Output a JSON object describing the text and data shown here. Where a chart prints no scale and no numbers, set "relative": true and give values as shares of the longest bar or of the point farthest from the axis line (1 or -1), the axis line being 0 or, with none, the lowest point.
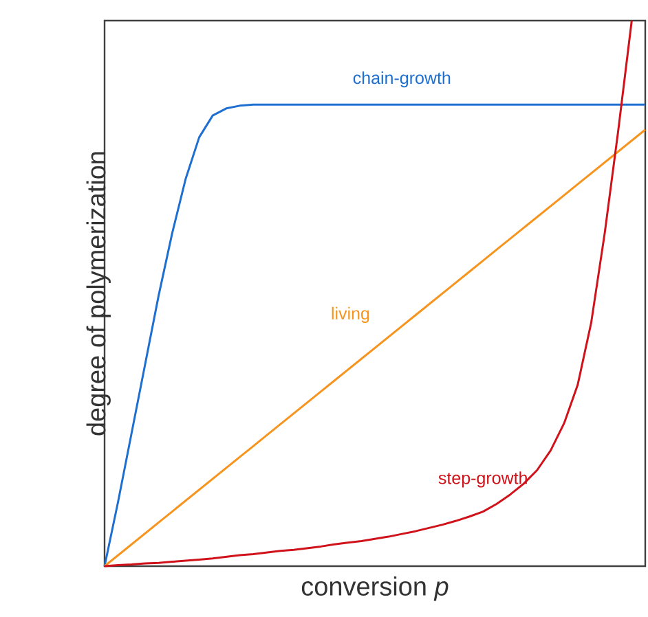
{
  "chart_data": {
    "type": "line",
    "relative": true,
    "xlabel": "conversion *p*",
    "ylabel": "degree of polymerization",
    "marker": "none",
    "line_style": "solid",
    "categories": [
      null,
      null,
      null,
      null,
      null,
      null,
      null,
      null,
      null,
      null,
      null,
      null,
      null,
      null,
      null,
      null,
      null,
      null,
      null,
      null,
      null,
      null,
      null,
      null,
      null,
      null,
      null,
      null,
      null,
      null,
      null,
      null,
      null,
      null,
      null,
      null,
      null,
      null,
      null,
      null,
      null
    ],
    "series": [
      {
        "name": "chain-growth",
        "color": "#1f6fd1",
        "values": [
          0,
          0.118,
          0.244,
          0.37,
          0.496,
          0.61,
          0.71,
          0.786,
          0.826,
          0.839,
          0.844,
          0.846,
          0.846,
          0.846,
          0.846,
          0.846,
          0.846,
          0.846,
          0.846,
          0.846,
          0.846,
          0.846,
          0.846,
          0.846,
          0.846,
          0.846,
          0.846,
          0.846,
          0.846,
          0.846,
          0.846,
          0.846,
          0.846,
          0.846,
          0.846,
          0.846,
          0.846,
          0.846,
          0.846,
          0.846,
          0.846
        ]
      },
      {
        "name": "living",
        "color": "#f7941d",
        "values": [
          0,
          0.02,
          0.04,
          0.06,
          0.08,
          0.1,
          0.12,
          0.14,
          0.16,
          0.18,
          0.2,
          0.22,
          0.24,
          0.26,
          0.28,
          0.3,
          0.32,
          0.34,
          0.36,
          0.38,
          0.4,
          0.42,
          0.44,
          0.46,
          0.48,
          0.5,
          0.52,
          0.54,
          0.56,
          0.58,
          0.6,
          0.62,
          0.64,
          0.66,
          0.68,
          0.7,
          0.72,
          0.74,
          0.76,
          0.78,
          0.8
        ]
      },
      {
        "name": "step-growth",
        "color": "#d0121b",
        "values": [
          0,
          0.002,
          0.003,
          0.005,
          0.006,
          0.008,
          0.01,
          0.012,
          0.014,
          0.017,
          0.02,
          0.022,
          0.025,
          0.028,
          0.03,
          0.033,
          0.036,
          0.04,
          0.043,
          0.046,
          0.05,
          0.054,
          0.059,
          0.064,
          0.07,
          0.076,
          0.083,
          0.091,
          0.1,
          0.114,
          0.131,
          0.151,
          0.176,
          0.212,
          0.262,
          0.332,
          0.446,
          0.61,
          0.798,
          1.0,
          null
        ]
      }
    ]
  }
}
